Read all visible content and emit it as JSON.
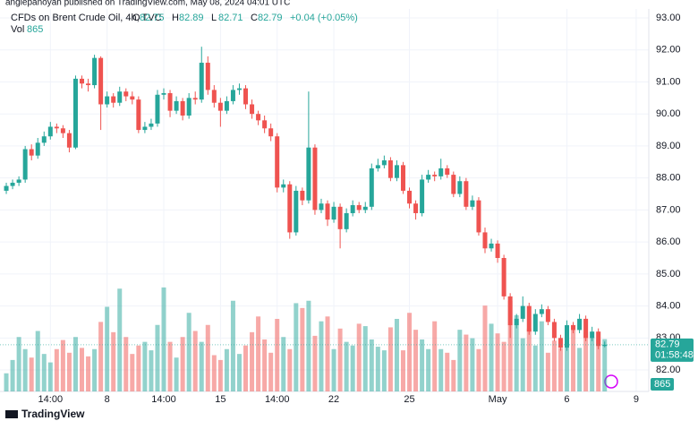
{
  "chart_data": {
    "type": "candlestick",
    "publisher": "angiepanoyan published on TradingView.com, May 08, 2024 04:01 UTC",
    "title": "CFDs on Brent Crude Oil, 4h, TVC",
    "ohlc_labels": [
      "O",
      "H",
      "L",
      "C"
    ],
    "change": "+0.04 (+0.05%)",
    "volume_label": "Vol",
    "countdown": "01:58:48",
    "brand": "TradingView",
    "up_color": "#26a69a",
    "down_color": "#ef5350",
    "grid": true,
    "ylim": [
      81.33,
      93.56
    ],
    "yticks": [
      {
        "value": 82,
        "label": "82.00"
      },
      {
        "value": 83,
        "label": "83.00"
      },
      {
        "value": 84,
        "label": "84.00"
      },
      {
        "value": 85,
        "label": "85.00"
      },
      {
        "value": 86,
        "label": "86.00"
      },
      {
        "value": 87,
        "label": "87.00"
      },
      {
        "value": 88,
        "label": "88.00"
      },
      {
        "value": 89,
        "label": "89.00"
      },
      {
        "value": 90,
        "label": "90.00"
      },
      {
        "value": 91,
        "label": "91.00"
      },
      {
        "value": 92,
        "label": "92.00"
      },
      {
        "value": 93,
        "label": "93.00"
      }
    ],
    "xlim": [
      -1,
      102
    ],
    "xticks": [
      {
        "value": 7,
        "label": "14:00"
      },
      {
        "value": 16,
        "label": "8"
      },
      {
        "value": 25,
        "label": "14:00"
      },
      {
        "value": 34,
        "label": "15"
      },
      {
        "value": 43,
        "label": "14:00"
      },
      {
        "value": 52,
        "label": "22"
      },
      {
        "value": 64,
        "label": "25"
      },
      {
        "value": 78,
        "label": "May"
      },
      {
        "value": 89,
        "label": "6"
      },
      {
        "value": 100,
        "label": "9"
      }
    ],
    "vlim": [
      0,
      2000
    ],
    "ohlc": [
      [
        87.6,
        87.85,
        87.5,
        87.75
      ],
      [
        87.75,
        87.95,
        87.65,
        87.85
      ],
      [
        87.85,
        88.05,
        87.75,
        87.95
      ],
      [
        87.95,
        89.0,
        87.85,
        88.9
      ],
      [
        88.9,
        89.05,
        88.55,
        88.7
      ],
      [
        88.7,
        89.25,
        88.6,
        89.1
      ],
      [
        89.1,
        89.45,
        89.0,
        89.3
      ],
      [
        89.3,
        89.75,
        89.2,
        89.6
      ],
      [
        89.6,
        89.7,
        89.4,
        89.55
      ],
      [
        89.55,
        89.65,
        89.25,
        89.4
      ],
      [
        89.4,
        89.5,
        88.8,
        88.95
      ],
      [
        88.95,
        91.2,
        88.9,
        91.1
      ],
      [
        91.1,
        91.2,
        90.8,
        90.95
      ],
      [
        90.95,
        91.1,
        90.7,
        90.9
      ],
      [
        90.9,
        91.85,
        90.8,
        91.75
      ],
      [
        91.75,
        91.8,
        89.5,
        90.3
      ],
      [
        90.3,
        90.7,
        90.2,
        90.55
      ],
      [
        90.55,
        90.65,
        90.2,
        90.35
      ],
      [
        90.35,
        90.85,
        90.25,
        90.7
      ],
      [
        90.7,
        90.8,
        90.4,
        90.55
      ],
      [
        90.55,
        90.7,
        90.3,
        90.45
      ],
      [
        90.45,
        90.55,
        89.4,
        89.5
      ],
      [
        89.5,
        89.75,
        89.4,
        89.6
      ],
      [
        89.6,
        89.85,
        89.5,
        89.7
      ],
      [
        89.7,
        90.75,
        89.6,
        90.6
      ],
      [
        90.6,
        90.8,
        90.45,
        90.65
      ],
      [
        90.65,
        90.75,
        89.9,
        90.1
      ],
      [
        90.1,
        90.55,
        90.0,
        90.4
      ],
      [
        90.4,
        90.5,
        89.8,
        89.95
      ],
      [
        89.95,
        90.65,
        89.85,
        90.5
      ],
      [
        90.5,
        90.7,
        90.3,
        90.45
      ],
      [
        90.45,
        92.1,
        90.35,
        91.6
      ],
      [
        91.6,
        91.8,
        90.6,
        90.75
      ],
      [
        90.75,
        90.9,
        90.2,
        90.35
      ],
      [
        90.35,
        90.5,
        89.6,
        90.1
      ],
      [
        90.1,
        90.55,
        90.0,
        90.4
      ],
      [
        90.4,
        90.9,
        90.3,
        90.75
      ],
      [
        90.75,
        90.95,
        90.6,
        90.8
      ],
      [
        90.8,
        90.9,
        90.15,
        90.3
      ],
      [
        90.3,
        90.45,
        89.85,
        90.0
      ],
      [
        90.0,
        90.1,
        89.65,
        89.8
      ],
      [
        89.8,
        89.95,
        89.4,
        89.55
      ],
      [
        89.55,
        89.7,
        89.15,
        89.3
      ],
      [
        89.3,
        89.4,
        87.55,
        87.7
      ],
      [
        87.7,
        87.95,
        87.55,
        87.8
      ],
      [
        87.8,
        87.9,
        86.1,
        86.3
      ],
      [
        86.3,
        87.75,
        86.2,
        87.6
      ],
      [
        87.6,
        87.7,
        87.15,
        87.3
      ],
      [
        87.3,
        90.7,
        87.2,
        88.95
      ],
      [
        88.95,
        89.05,
        86.85,
        87.0
      ],
      [
        87.0,
        87.35,
        86.9,
        87.2
      ],
      [
        87.2,
        87.3,
        86.5,
        86.7
      ],
      [
        86.7,
        87.25,
        86.6,
        87.1
      ],
      [
        87.1,
        87.2,
        85.8,
        86.4
      ],
      [
        86.4,
        87.05,
        86.3,
        86.9
      ],
      [
        86.9,
        87.3,
        86.8,
        87.15
      ],
      [
        87.15,
        87.25,
        86.9,
        87.0
      ],
      [
        87.0,
        87.25,
        86.9,
        87.1
      ],
      [
        87.1,
        88.45,
        87.0,
        88.3
      ],
      [
        88.3,
        88.6,
        88.2,
        88.4
      ],
      [
        88.4,
        88.7,
        88.3,
        88.55
      ],
      [
        88.55,
        88.65,
        87.9,
        88.0
      ],
      [
        88.0,
        88.55,
        87.9,
        88.4
      ],
      [
        88.4,
        88.5,
        87.5,
        87.6
      ],
      [
        87.6,
        87.7,
        87.05,
        87.2
      ],
      [
        87.2,
        87.3,
        86.7,
        86.9
      ],
      [
        86.9,
        88.1,
        86.8,
        87.95
      ],
      [
        87.95,
        88.25,
        87.85,
        88.1
      ],
      [
        88.1,
        88.2,
        87.9,
        88.05
      ],
      [
        88.05,
        88.6,
        87.95,
        88.3
      ],
      [
        88.3,
        88.4,
        88.0,
        88.1
      ],
      [
        88.1,
        88.2,
        87.4,
        87.5
      ],
      [
        87.5,
        88.05,
        87.4,
        87.9
      ],
      [
        87.9,
        88.0,
        87.0,
        87.1
      ],
      [
        87.1,
        87.45,
        87.0,
        87.3
      ],
      [
        87.3,
        87.4,
        86.2,
        86.3
      ],
      [
        86.3,
        86.45,
        85.65,
        85.8
      ],
      [
        85.8,
        86.1,
        85.7,
        85.95
      ],
      [
        85.95,
        86.05,
        85.35,
        85.5
      ],
      [
        85.5,
        85.6,
        84.2,
        84.3
      ],
      [
        84.3,
        84.4,
        83.0,
        83.4
      ],
      [
        83.4,
        83.75,
        83.3,
        83.6
      ],
      [
        83.6,
        84.3,
        83.5,
        84.0
      ],
      [
        84.0,
        84.1,
        83.1,
        83.2
      ],
      [
        83.2,
        83.9,
        83.1,
        83.75
      ],
      [
        83.75,
        84.05,
        83.65,
        83.9
      ],
      [
        83.9,
        84.0,
        83.4,
        83.5
      ],
      [
        83.5,
        83.6,
        82.9,
        83.0
      ],
      [
        83.0,
        83.1,
        82.6,
        82.7
      ],
      [
        82.7,
        83.55,
        82.6,
        83.4
      ],
      [
        83.4,
        83.5,
        83.15,
        83.25
      ],
      [
        83.25,
        83.75,
        83.15,
        83.6
      ],
      [
        83.6,
        83.7,
        82.9,
        83.0
      ],
      [
        83.0,
        83.35,
        82.9,
        83.2
      ],
      [
        83.2,
        83.3,
        82.65,
        82.75
      ],
      [
        82.75,
        82.89,
        82.71,
        82.79
      ]
    ],
    "volume": [
      300,
      520,
      900,
      700,
      560,
      1000,
      620,
      480,
      700,
      850,
      640,
      900,
      720,
      580,
      700,
      1150,
      1400,
      980,
      1700,
      900,
      620,
      760,
      820,
      680,
      1100,
      1720,
      820,
      560,
      900,
      1300,
      1000,
      820,
      1100,
      600,
      520,
      700,
      1500,
      620,
      760,
      980,
      1240,
      860,
      640,
      1200,
      900,
      700,
      1460,
      1380,
      1500,
      920,
      1160,
      1240,
      700,
      1040,
      820,
      760,
      1120,
      1080,
      860,
      740,
      680,
      1060,
      1200,
      680,
      1300,
      1020,
      860,
      700,
      1160,
      700,
      640,
      520,
      1020,
      940,
      880,
      700,
      1420,
      1120,
      960,
      820,
      1500,
      1260,
      880,
      1040,
      760,
      1160,
      640,
      840,
      720,
      1060,
      1100,
      720,
      980,
      900,
      860,
      865
    ]
  }
}
